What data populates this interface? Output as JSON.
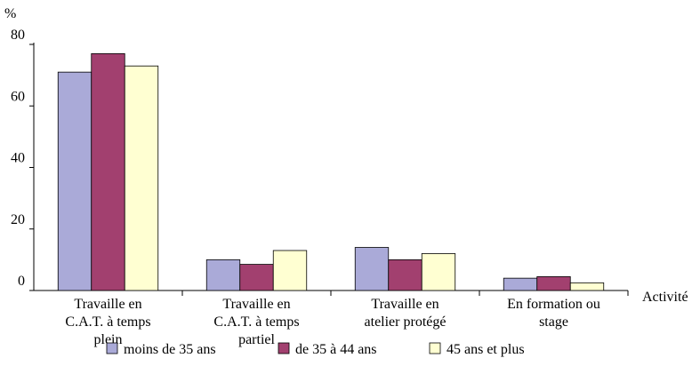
{
  "chart_data": {
    "type": "bar",
    "y_label": "%",
    "x_label": "Activité",
    "categories": [
      "Travaille en\nC.A.T. à temps\nplein",
      "Travaille en\nC.A.T. à temps\npartiel",
      "Travaille en\natelier protégé",
      "En formation ou\nstage"
    ],
    "series": [
      {
        "name": "moins de 35 ans",
        "color": "#aaaad8",
        "values": [
          71,
          10,
          14,
          4
        ]
      },
      {
        "name": "de 35 à 44 ans",
        "color": "#a2406f",
        "values": [
          77,
          8.5,
          10,
          4.5
        ]
      },
      {
        "name": "45 ans et plus",
        "color": "#ffffd2",
        "values": [
          73,
          13,
          12,
          2.5
        ]
      }
    ],
    "ylim": [
      0,
      80
    ],
    "yticks": [
      0,
      20,
      40,
      60,
      80
    ],
    "grid": false
  }
}
